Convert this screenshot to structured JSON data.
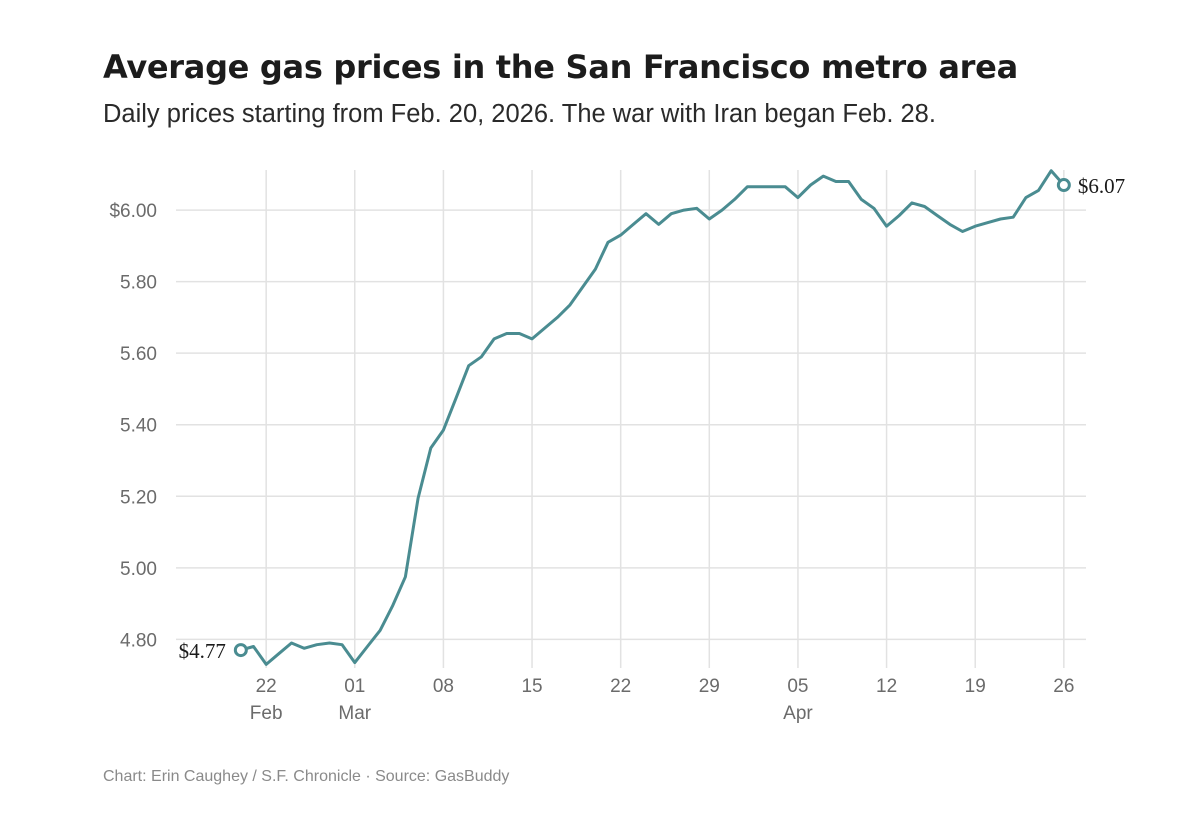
{
  "header": {
    "title": "Average gas prices in the San Francisco metro area",
    "subtitle": "Daily prices starting from Feb. 20, 2026. The war with Iran began Feb. 28."
  },
  "footer": {
    "credit": "Chart: Erin Caughey / S.F. Chronicle · Source: GasBuddy"
  },
  "colors": {
    "line": "#4a8c91",
    "grid": "#e2e2e2",
    "tick_text": "#6b6b6b",
    "label_text": "#1a1a1a"
  },
  "chart_data": {
    "type": "line",
    "title": "Average gas prices in the San Francisco metro area",
    "xlabel": "",
    "ylabel": "",
    "grid": true,
    "legend": "none",
    "xlim": [
      -1.25,
      66.75
    ],
    "ylim": [
      4.72,
      6.14
    ],
    "x_ticks": [
      {
        "x": 2,
        "label": "22",
        "month": "Feb"
      },
      {
        "x": 9,
        "label": "01",
        "month": "Mar"
      },
      {
        "x": 16,
        "label": "08",
        "month": ""
      },
      {
        "x": 23,
        "label": "15",
        "month": ""
      },
      {
        "x": 30,
        "label": "22",
        "month": ""
      },
      {
        "x": 37,
        "label": "29",
        "month": ""
      },
      {
        "x": 44,
        "label": "05",
        "month": "Apr"
      },
      {
        "x": 51,
        "label": "12",
        "month": ""
      },
      {
        "x": 58,
        "label": "19",
        "month": ""
      },
      {
        "x": 65,
        "label": "26",
        "month": ""
      }
    ],
    "y_ticks": [
      {
        "value": 4.8,
        "label": "4.80"
      },
      {
        "value": 5.0,
        "label": "5.00"
      },
      {
        "value": 5.2,
        "label": "5.20"
      },
      {
        "value": 5.4,
        "label": "5.40"
      },
      {
        "value": 5.6,
        "label": "5.60"
      },
      {
        "value": 5.8,
        "label": "5.80"
      },
      {
        "value": 6.0,
        "label": "$6.00"
      }
    ],
    "series": [
      {
        "name": "Average gas price",
        "start_date": "2026-02-20",
        "x": [
          0,
          1,
          2,
          3,
          4,
          5,
          6,
          7,
          8,
          9,
          10,
          11,
          12,
          13,
          14,
          15,
          16,
          17,
          18,
          19,
          20,
          21,
          22,
          23,
          24,
          25,
          26,
          27,
          28,
          29,
          30,
          31,
          32,
          33,
          34,
          35,
          36,
          37,
          38,
          39,
          40,
          41,
          42,
          43,
          44,
          45,
          46,
          47,
          48,
          49,
          50,
          51,
          52,
          53,
          54,
          55,
          56,
          57,
          58,
          59,
          60,
          61,
          62,
          63,
          64,
          65
        ],
        "values": [
          4.77,
          4.78,
          4.73,
          4.76,
          4.79,
          4.775,
          4.785,
          4.79,
          4.785,
          4.735,
          4.78,
          4.825,
          4.895,
          4.975,
          5.195,
          5.335,
          5.385,
          5.475,
          5.565,
          5.59,
          5.64,
          5.655,
          5.655,
          5.64,
          5.67,
          5.7,
          5.735,
          5.785,
          5.835,
          5.91,
          5.93,
          5.96,
          5.99,
          5.96,
          5.99,
          6.0,
          6.005,
          5.975,
          6.0,
          6.03,
          6.065,
          6.065,
          6.065,
          6.065,
          6.035,
          6.07,
          6.095,
          6.08,
          6.08,
          6.03,
          6.005,
          5.955,
          5.985,
          6.02,
          6.01,
          5.985,
          5.96,
          5.94,
          5.955,
          5.965,
          5.975,
          5.98,
          6.035,
          6.055,
          6.11,
          6.07
        ],
        "labels": {
          "first": "$4.77",
          "last": "$6.07"
        }
      }
    ]
  }
}
